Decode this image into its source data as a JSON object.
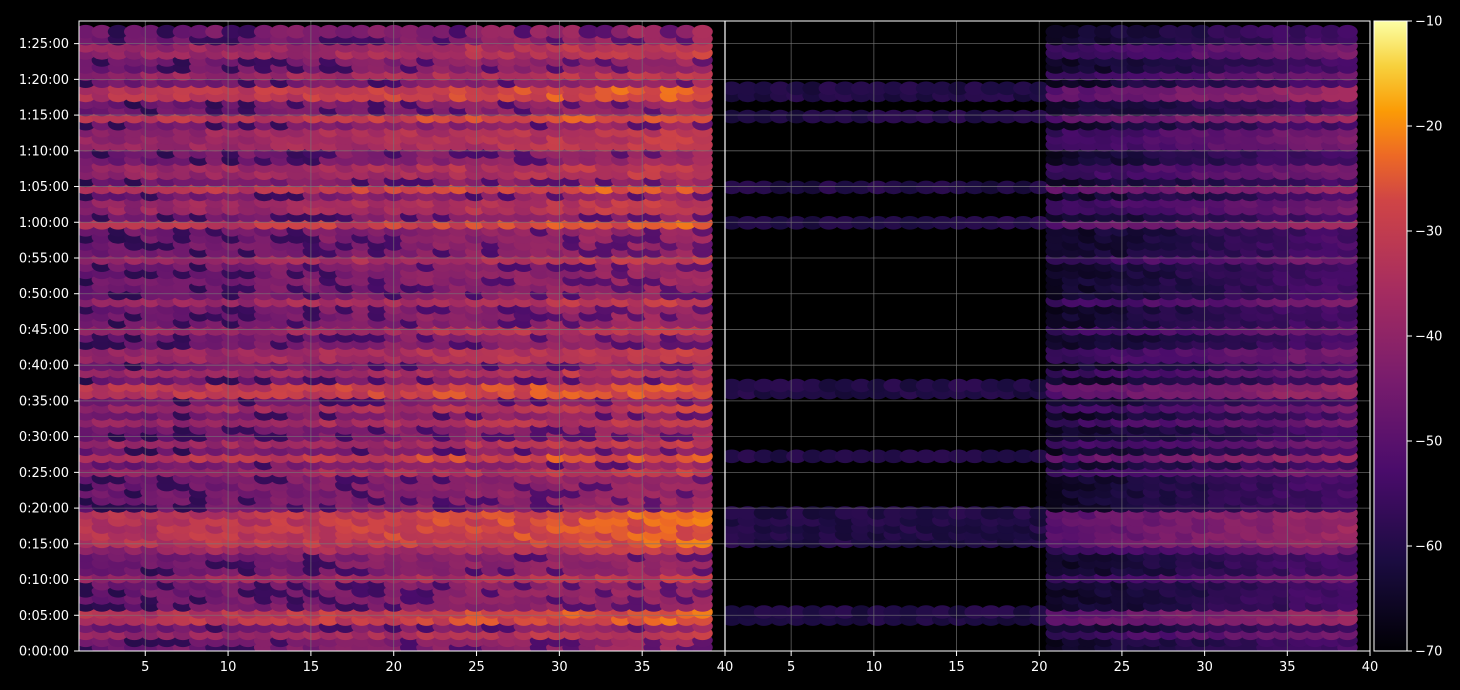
{
  "chart_data": {
    "type": "heatmap",
    "panels": [
      {
        "name": "",
        "xlim": [
          1,
          40
        ],
        "xticks": [
          5,
          10,
          15,
          20,
          25,
          30,
          35,
          40
        ]
      },
      {
        "name": "",
        "xlim": [
          1,
          40
        ],
        "xticks": [
          5,
          10,
          15,
          20,
          25,
          30,
          35,
          40
        ]
      }
    ],
    "yticks": [
      "0:00:00",
      "0:05:00",
      "0:10:00",
      "0:15:00",
      "0:20:00",
      "0:25:00",
      "0:30:00",
      "0:35:00",
      "0:40:00",
      "0:45:00",
      "0:50:00",
      "0:55:00",
      "1:00:00",
      "1:05:00",
      "1:10:00",
      "1:15:00",
      "1:20:00",
      "1:25:00"
    ],
    "ylim_seconds": [
      0,
      5290
    ],
    "grid": true,
    "colorbar": {
      "min": -70,
      "max": -10,
      "ticks": [
        -10,
        -20,
        -30,
        -40,
        -50,
        -60,
        -70
      ],
      "colormap": "inferno",
      "placement": "right"
    },
    "x_bins": 39,
    "time_bins": 88,
    "strong_rows_seconds": [
      290,
      960,
      1000,
      1140,
      1650,
      2190,
      3610,
      3880,
      4500,
      4690
    ],
    "medium_rows_seconds": [
      150,
      620,
      860,
      1510,
      1760,
      1920,
      2040,
      2350,
      2500,
      2720,
      2940,
      3290,
      3740,
      4030,
      4240,
      4350,
      4860,
      5060
    ]
  },
  "colors": {
    "background": "#000000",
    "grid": "#777777",
    "axis": "#ffffff"
  }
}
